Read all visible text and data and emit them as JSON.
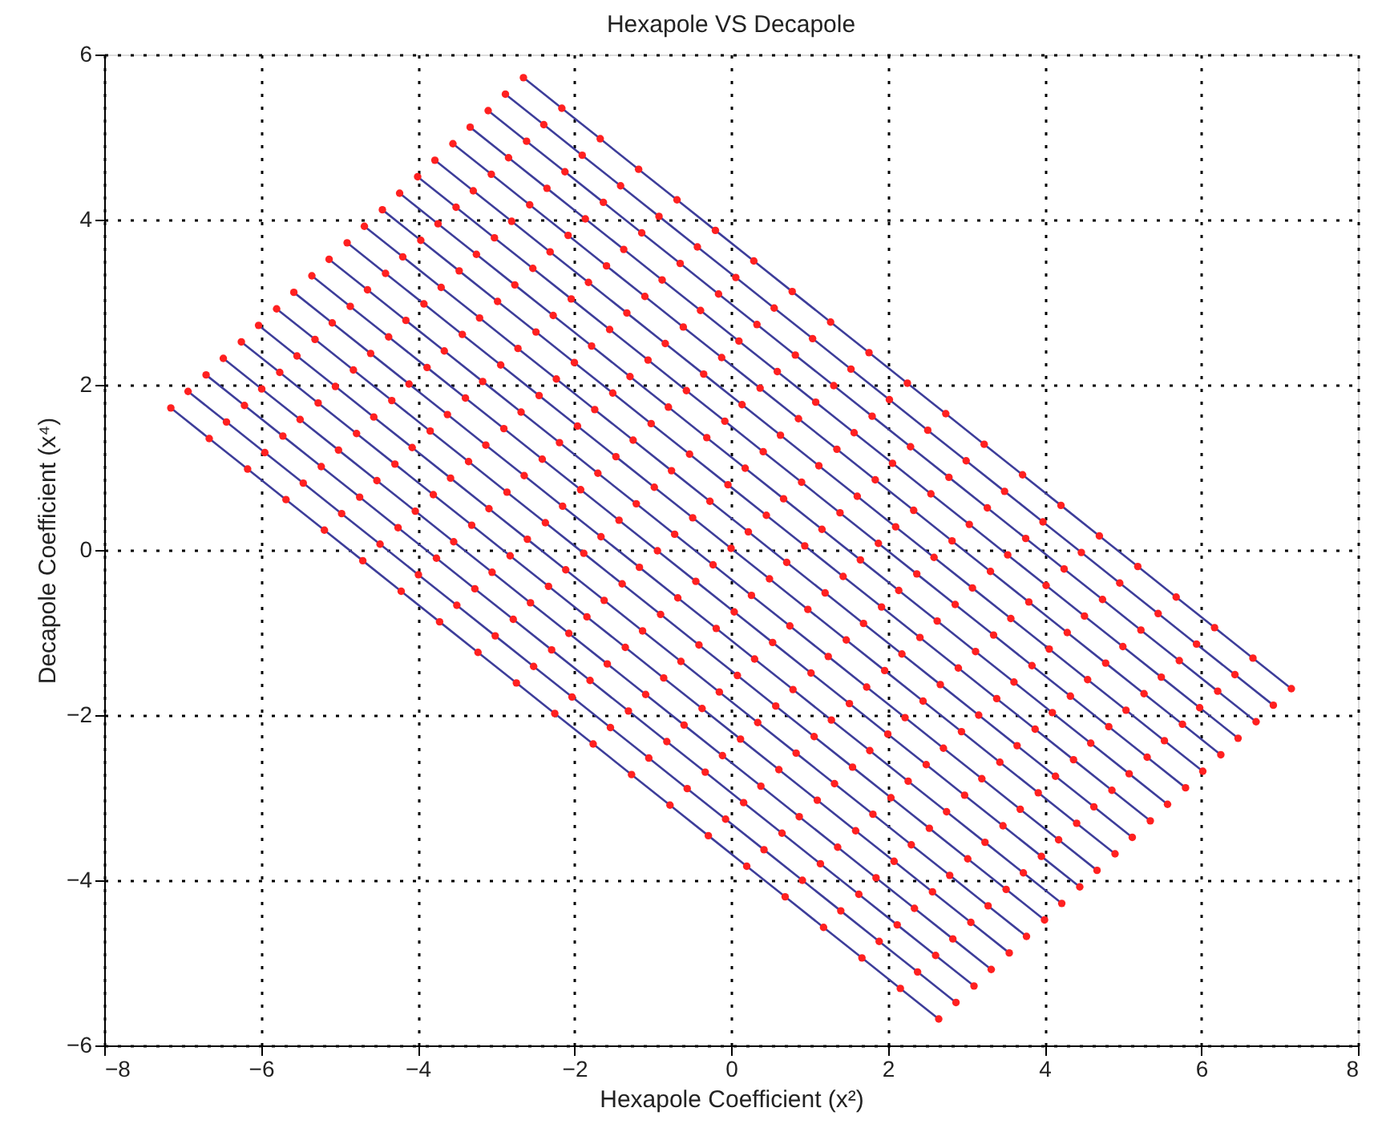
{
  "chart_data": {
    "type": "line",
    "title": "Hexapole VS Decapole",
    "xlabel": "Hexapole Coefficient (x²)",
    "ylabel": "Decapole Coefficient (x⁴)",
    "xlim": [
      -8,
      8
    ],
    "xticks": [
      -8,
      -6,
      -4,
      -2,
      0,
      2,
      4,
      6,
      8
    ],
    "ylim": [
      -6,
      6
    ],
    "yticks": [
      -6,
      -4,
      -2,
      0,
      2,
      4,
      6
    ],
    "grid": true,
    "legend": false,
    "marker": "circle",
    "line_style": "solid",
    "colors": [
      "#3d3d9a",
      "#ff2020"
    ],
    "series": [
      {
        "color": "#3d3d9a",
        "x": [
          -7.15,
          -6.66,
          -6.17,
          -5.68,
          -5.19,
          -4.7,
          -4.21,
          -3.72,
          -3.23,
          -2.74,
          -2.25,
          -1.76,
          -1.27,
          -0.78,
          -0.29,
          0.2,
          0.69,
          1.18,
          1.67,
          2.16,
          2.65
        ],
        "values": [
          1.72,
          1.35,
          0.98,
          0.61,
          0.24,
          -0.13,
          -0.5,
          -0.87,
          -1.24,
          -1.61,
          -1.98,
          -2.35,
          -2.72,
          -3.09,
          -3.46,
          -3.83,
          -4.2,
          -4.57,
          -4.94,
          -5.31,
          -5.68
        ]
      },
      {
        "color": "#3d3d9a",
        "x": [
          -6.93,
          -6.44,
          -5.95,
          -5.46,
          -4.97,
          -4.48,
          -3.99,
          -3.5,
          -3.01,
          -2.52,
          -2.03,
          -1.54,
          -1.05,
          -0.56,
          -0.07,
          0.42,
          0.91,
          1.4,
          1.89,
          2.38,
          2.87
        ],
        "values": [
          1.92,
          1.55,
          1.18,
          0.81,
          0.44,
          0.07,
          -0.3,
          -0.67,
          -1.04,
          -1.41,
          -1.78,
          -2.15,
          -2.52,
          -2.89,
          -3.26,
          -3.63,
          -4,
          -4.37,
          -4.74,
          -5.11,
          -5.48
        ]
      },
      {
        "color": "#3d3d9a",
        "x": [
          -6.7,
          -6.21,
          -5.72,
          -5.23,
          -4.74,
          -4.25,
          -3.76,
          -3.27,
          -2.78,
          -2.29,
          -1.8,
          -1.31,
          -0.82,
          -0.33,
          0.16,
          0.65,
          1.14,
          1.63,
          2.12,
          2.61,
          3.1
        ],
        "values": [
          2.12,
          1.75,
          1.38,
          1.01,
          0.64,
          0.27,
          -0.1,
          -0.47,
          -0.84,
          -1.21,
          -1.58,
          -1.95,
          -2.32,
          -2.69,
          -3.06,
          -3.43,
          -3.8,
          -4.17,
          -4.54,
          -4.91,
          -5.28
        ]
      },
      {
        "color": "#3d3d9a",
        "x": [
          -6.48,
          -5.99,
          -5.5,
          -5.01,
          -4.52,
          -4.03,
          -3.54,
          -3.05,
          -2.56,
          -2.07,
          -1.58,
          -1.09,
          -0.6,
          -0.11,
          0.38,
          0.87,
          1.36,
          1.85,
          2.34,
          2.83,
          3.32
        ],
        "values": [
          2.32,
          1.95,
          1.58,
          1.21,
          0.84,
          0.47,
          0.1,
          -0.27,
          -0.64,
          -1.01,
          -1.38,
          -1.75,
          -2.12,
          -2.49,
          -2.86,
          -3.23,
          -3.6,
          -3.97,
          -4.34,
          -4.71,
          -5.08
        ]
      },
      {
        "color": "#3d3d9a",
        "x": [
          -6.25,
          -5.76,
          -5.27,
          -4.78,
          -4.29,
          -3.8,
          -3.31,
          -2.82,
          -2.33,
          -1.84,
          -1.35,
          -0.86,
          -0.37,
          0.12,
          0.61,
          1.1,
          1.59,
          2.08,
          2.57,
          3.06,
          3.55
        ],
        "values": [
          2.52,
          2.15,
          1.78,
          1.41,
          1.04,
          0.67,
          0.3,
          -0.07,
          -0.44,
          -0.81,
          -1.18,
          -1.55,
          -1.92,
          -2.29,
          -2.66,
          -3.03,
          -3.4,
          -3.77,
          -4.14,
          -4.51,
          -4.88
        ]
      },
      {
        "color": "#3d3d9a",
        "x": [
          -6.03,
          -5.54,
          -5.05,
          -4.56,
          -4.07,
          -3.58,
          -3.09,
          -2.6,
          -2.11,
          -1.62,
          -1.13,
          -0.64,
          -0.15,
          0.34,
          0.83,
          1.32,
          1.81,
          2.3,
          2.79,
          3.28,
          3.77
        ],
        "values": [
          2.72,
          2.35,
          1.98,
          1.61,
          1.24,
          0.87,
          0.5,
          0.13,
          -0.24,
          -0.61,
          -0.98,
          -1.35,
          -1.72,
          -2.09,
          -2.46,
          -2.83,
          -3.2,
          -3.57,
          -3.94,
          -4.31,
          -4.68
        ]
      },
      {
        "color": "#3d3d9a",
        "x": [
          -5.8,
          -5.31,
          -4.82,
          -4.33,
          -3.84,
          -3.35,
          -2.86,
          -2.37,
          -1.88,
          -1.39,
          -0.9,
          -0.41,
          0.08,
          0.57,
          1.06,
          1.55,
          2.04,
          2.53,
          3.02,
          3.51,
          4
        ],
        "values": [
          2.92,
          2.55,
          2.18,
          1.81,
          1.44,
          1.07,
          0.7,
          0.33,
          -0.04,
          -0.41,
          -0.78,
          -1.15,
          -1.52,
          -1.89,
          -2.26,
          -2.63,
          -3,
          -3.37,
          -3.74,
          -4.11,
          -4.48
        ]
      },
      {
        "color": "#3d3d9a",
        "x": [
          -5.58,
          -5.09,
          -4.6,
          -4.11,
          -3.62,
          -3.13,
          -2.64,
          -2.15,
          -1.66,
          -1.17,
          -0.68,
          -0.19,
          0.3,
          0.79,
          1.28,
          1.77,
          2.26,
          2.75,
          3.24,
          3.73,
          4.22
        ],
        "values": [
          3.12,
          2.75,
          2.38,
          2.01,
          1.64,
          1.27,
          0.9,
          0.53,
          0.16,
          -0.21,
          -0.58,
          -0.95,
          -1.32,
          -1.69,
          -2.06,
          -2.43,
          -2.8,
          -3.17,
          -3.54,
          -3.91,
          -4.28
        ]
      },
      {
        "color": "#3d3d9a",
        "x": [
          -5.35,
          -4.86,
          -4.37,
          -3.88,
          -3.39,
          -2.9,
          -2.41,
          -1.92,
          -1.43,
          -0.94,
          -0.45,
          0.04,
          0.53,
          1.02,
          1.51,
          2,
          2.49,
          2.98,
          3.47,
          3.96,
          4.45
        ],
        "values": [
          3.32,
          2.95,
          2.58,
          2.21,
          1.84,
          1.47,
          1.1,
          0.73,
          0.36,
          -0.01,
          -0.38,
          -0.75,
          -1.12,
          -1.49,
          -1.86,
          -2.23,
          -2.6,
          -2.97,
          -3.34,
          -3.71,
          -4.08
        ]
      },
      {
        "color": "#3d3d9a",
        "x": [
          -5.13,
          -4.64,
          -4.15,
          -3.66,
          -3.17,
          -2.68,
          -2.19,
          -1.7,
          -1.21,
          -0.72,
          -0.23,
          0.26,
          0.75,
          1.24,
          1.73,
          2.22,
          2.71,
          3.2,
          3.69,
          4.18,
          4.67
        ],
        "values": [
          3.52,
          3.15,
          2.78,
          2.41,
          2.04,
          1.67,
          1.3,
          0.93,
          0.56,
          0.19,
          -0.18,
          -0.55,
          -0.92,
          -1.29,
          -1.66,
          -2.03,
          -2.4,
          -2.77,
          -3.14,
          -3.51,
          -3.88
        ]
      },
      {
        "color": "#3d3d9a",
        "x": [
          -4.9,
          -4.41,
          -3.92,
          -3.43,
          -2.94,
          -2.45,
          -1.96,
          -1.47,
          -0.98,
          -0.49,
          0,
          0.49,
          0.98,
          1.47,
          1.96,
          2.45,
          2.94,
          3.43,
          3.92,
          4.41,
          4.9
        ],
        "values": [
          3.72,
          3.35,
          2.98,
          2.61,
          2.24,
          1.87,
          1.5,
          1.13,
          0.76,
          0.39,
          0.02,
          -0.35,
          -0.72,
          -1.09,
          -1.46,
          -1.83,
          -2.2,
          -2.57,
          -2.94,
          -3.31,
          -3.68
        ]
      },
      {
        "color": "#3d3d9a",
        "x": [
          -4.68,
          -4.19,
          -3.7,
          -3.21,
          -2.72,
          -2.23,
          -1.74,
          -1.25,
          -0.76,
          -0.27,
          0.22,
          0.71,
          1.2,
          1.69,
          2.18,
          2.67,
          3.16,
          3.65,
          4.14,
          4.63,
          5.12
        ],
        "values": [
          3.92,
          3.55,
          3.18,
          2.81,
          2.44,
          2.07,
          1.7,
          1.33,
          0.96,
          0.59,
          0.22,
          -0.15,
          -0.52,
          -0.89,
          -1.26,
          -1.63,
          -2,
          -2.37,
          -2.74,
          -3.11,
          -3.48
        ]
      },
      {
        "color": "#3d3d9a",
        "x": [
          -4.45,
          -3.96,
          -3.47,
          -2.98,
          -2.49,
          -2,
          -1.51,
          -1.02,
          -0.53,
          -0.04,
          0.45,
          0.94,
          1.43,
          1.92,
          2.41,
          2.9,
          3.39,
          3.88,
          4.37,
          4.86,
          5.35
        ],
        "values": [
          4.12,
          3.75,
          3.38,
          3.01,
          2.64,
          2.27,
          1.9,
          1.53,
          1.16,
          0.79,
          0.42,
          0.05,
          -0.32,
          -0.69,
          -1.06,
          -1.43,
          -1.8,
          -2.17,
          -2.54,
          -2.91,
          -3.28
        ]
      },
      {
        "color": "#3d3d9a",
        "x": [
          -4.23,
          -3.74,
          -3.25,
          -2.76,
          -2.27,
          -1.78,
          -1.29,
          -0.8,
          -0.31,
          0.18,
          0.67,
          1.16,
          1.65,
          2.14,
          2.63,
          3.12,
          3.61,
          4.1,
          4.59,
          5.08,
          5.57
        ],
        "values": [
          4.32,
          3.95,
          3.58,
          3.21,
          2.84,
          2.47,
          2.1,
          1.73,
          1.36,
          0.99,
          0.62,
          0.25,
          -0.12,
          -0.49,
          -0.86,
          -1.23,
          -1.6,
          -1.97,
          -2.34,
          -2.71,
          -3.08
        ]
      },
      {
        "color": "#3d3d9a",
        "x": [
          -4,
          -3.51,
          -3.02,
          -2.53,
          -2.04,
          -1.55,
          -1.06,
          -0.57,
          -0.08,
          0.41,
          0.9,
          1.39,
          1.88,
          2.37,
          2.86,
          3.35,
          3.84,
          4.33,
          4.82,
          5.31,
          5.8
        ],
        "values": [
          4.52,
          4.15,
          3.78,
          3.41,
          3.04,
          2.67,
          2.3,
          1.93,
          1.56,
          1.19,
          0.82,
          0.45,
          0.08,
          -0.29,
          -0.66,
          -1.03,
          -1.4,
          -1.77,
          -2.14,
          -2.51,
          -2.88
        ]
      },
      {
        "color": "#3d3d9a",
        "x": [
          -3.78,
          -3.29,
          -2.8,
          -2.31,
          -1.82,
          -1.33,
          -0.84,
          -0.35,
          0.14,
          0.63,
          1.12,
          1.61,
          2.1,
          2.59,
          3.08,
          3.57,
          4.06,
          4.55,
          5.04,
          5.53,
          6.02
        ],
        "values": [
          4.72,
          4.35,
          3.98,
          3.61,
          3.24,
          2.87,
          2.5,
          2.13,
          1.76,
          1.39,
          1.02,
          0.65,
          0.28,
          -0.09,
          -0.46,
          -0.83,
          -1.2,
          -1.57,
          -1.94,
          -2.31,
          -2.68
        ]
      },
      {
        "color": "#3d3d9a",
        "x": [
          -3.55,
          -3.06,
          -2.57,
          -2.08,
          -1.59,
          -1.1,
          -0.61,
          -0.12,
          0.37,
          0.86,
          1.35,
          1.84,
          2.33,
          2.82,
          3.31,
          3.8,
          4.29,
          4.78,
          5.27,
          5.76,
          6.25
        ],
        "values": [
          4.92,
          4.55,
          4.18,
          3.81,
          3.44,
          3.07,
          2.7,
          2.33,
          1.96,
          1.59,
          1.22,
          0.85,
          0.48,
          0.11,
          -0.26,
          -0.63,
          -1,
          -1.37,
          -1.74,
          -2.11,
          -2.48
        ]
      },
      {
        "color": "#3d3d9a",
        "x": [
          -3.33,
          -2.84,
          -2.35,
          -1.86,
          -1.37,
          -0.88,
          -0.39,
          0.1,
          0.59,
          1.08,
          1.57,
          2.06,
          2.55,
          3.04,
          3.53,
          4.02,
          4.51,
          5,
          5.49,
          5.98,
          6.47
        ],
        "values": [
          5.12,
          4.75,
          4.38,
          4.01,
          3.64,
          3.27,
          2.9,
          2.53,
          2.16,
          1.79,
          1.42,
          1.05,
          0.68,
          0.31,
          -0.06,
          -0.43,
          -0.8,
          -1.17,
          -1.54,
          -1.91,
          -2.28
        ]
      },
      {
        "color": "#3d3d9a",
        "x": [
          -3.1,
          -2.61,
          -2.12,
          -1.63,
          -1.14,
          -0.65,
          -0.16,
          0.33,
          0.82,
          1.31,
          1.8,
          2.29,
          2.78,
          3.27,
          3.76,
          4.25,
          4.74,
          5.23,
          5.72,
          6.21,
          6.7
        ],
        "values": [
          5.32,
          4.95,
          4.58,
          4.21,
          3.84,
          3.47,
          3.1,
          2.73,
          2.36,
          1.99,
          1.62,
          1.25,
          0.88,
          0.51,
          0.14,
          -0.23,
          -0.6,
          -0.97,
          -1.34,
          -1.71,
          -2.08
        ]
      },
      {
        "color": "#3d3d9a",
        "x": [
          -2.88,
          -2.39,
          -1.9,
          -1.41,
          -0.92,
          -0.43,
          0.06,
          0.55,
          1.04,
          1.53,
          2.02,
          2.51,
          3,
          3.49,
          3.98,
          4.47,
          4.96,
          5.45,
          5.94,
          6.43,
          6.92
        ],
        "values": [
          5.52,
          5.15,
          4.78,
          4.41,
          4.04,
          3.67,
          3.3,
          2.93,
          2.56,
          2.19,
          1.82,
          1.45,
          1.08,
          0.71,
          0.34,
          -0.03,
          -0.4,
          -0.77,
          -1.14,
          -1.51,
          -1.88
        ]
      },
      {
        "color": "#3d3d9a",
        "x": [
          -2.65,
          -2.16,
          -1.67,
          -1.18,
          -0.69,
          -0.2,
          0.29,
          0.78,
          1.27,
          1.76,
          2.25,
          2.74,
          3.23,
          3.72,
          4.21,
          4.7,
          5.19,
          5.68,
          6.17,
          6.66,
          7.15
        ],
        "values": [
          5.72,
          5.35,
          4.98,
          4.61,
          4.24,
          3.87,
          3.5,
          3.13,
          2.76,
          2.39,
          2.02,
          1.65,
          1.28,
          0.91,
          0.54,
          0.17,
          -0.2,
          -0.57,
          -0.94,
          -1.31,
          -1.68
        ]
      }
    ]
  }
}
